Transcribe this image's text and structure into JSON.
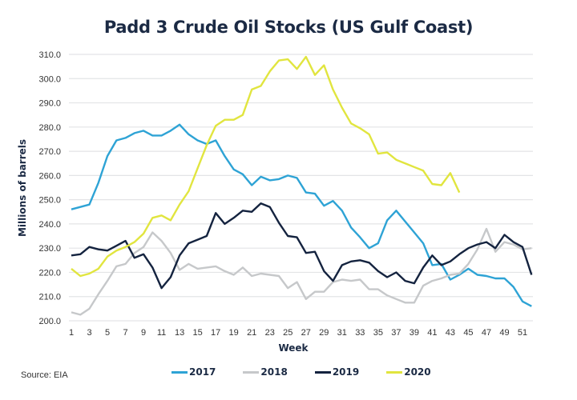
{
  "chart_data": {
    "type": "line",
    "title": "Padd 3 Crude Oil Stocks (US Gulf Coast)",
    "xlabel": "Week",
    "ylabel": "Millions of barrels",
    "source": "Source: EIA",
    "ylim": [
      200,
      310
    ],
    "xlim": [
      1,
      52
    ],
    "grid": true,
    "legend_position": "bottom-center",
    "y_ticks": [
      "200.0",
      "210.0",
      "220.0",
      "230.0",
      "240.0",
      "250.0",
      "260.0",
      "270.0",
      "280.0",
      "290.0",
      "300.0",
      "310.0"
    ],
    "x_ticks": [
      1,
      3,
      5,
      7,
      9,
      11,
      13,
      15,
      17,
      19,
      21,
      23,
      25,
      27,
      29,
      31,
      33,
      35,
      37,
      39,
      41,
      43,
      45,
      47,
      49,
      51
    ],
    "series": [
      {
        "name": "2017",
        "color": "#2ea3d5",
        "values": [
          246,
          247,
          248,
          257,
          268,
          274.5,
          275.5,
          277.5,
          278.5,
          276.5,
          276.5,
          278.5,
          281,
          277,
          274.5,
          273,
          274.5,
          268,
          262.5,
          260.5,
          256,
          259.5,
          258,
          258.5,
          260,
          259,
          253,
          252.5,
          247.5,
          249.5,
          245.5,
          238.5,
          234.5,
          230,
          232,
          241.5,
          245.5,
          241,
          236.5,
          232,
          223,
          223.5,
          217,
          219,
          221.5,
          219,
          218.5,
          217.5,
          217.5,
          214,
          208,
          206
        ]
      },
      {
        "name": "2018",
        "color": "#c6c8ca",
        "values": [
          203.5,
          202.5,
          205,
          211,
          216.5,
          222.5,
          223.5,
          228,
          230.5,
          236.5,
          233,
          228,
          221,
          223.5,
          221.5,
          222,
          222.5,
          220.5,
          219,
          222,
          218.5,
          219.5,
          219,
          218.5,
          213.5,
          216,
          209,
          212,
          212,
          216,
          217,
          216.5,
          217,
          213,
          213,
          210.5,
          209,
          207.5,
          207.5,
          214.5,
          216.5,
          217.5,
          219,
          219.5,
          223.5,
          229.5,
          238,
          228.5,
          232.5,
          231.5,
          229.5,
          230
        ]
      },
      {
        "name": "2019",
        "color": "#14233f",
        "values": [
          227,
          227.5,
          230.5,
          229.5,
          229,
          231,
          233,
          226,
          227.5,
          222,
          213.5,
          218,
          227,
          232,
          233.5,
          235,
          244.5,
          240,
          242.5,
          245.5,
          245,
          248.5,
          247,
          240.5,
          235,
          234.5,
          228,
          228.5,
          220.5,
          216.5,
          223,
          224.5,
          225,
          224,
          220.5,
          218,
          220,
          216.5,
          215.5,
          222,
          227,
          223,
          224.5,
          227.5,
          230,
          231.5,
          232.5,
          230,
          235.5,
          232.5,
          230.5,
          219
        ]
      },
      {
        "name": "2020",
        "color": "#e1e53f",
        "values": [
          221.5,
          218.5,
          219.5,
          221.5,
          226.5,
          229,
          230.5,
          232.5,
          236,
          242.5,
          243.5,
          241.5,
          248,
          253.5,
          263,
          272.5,
          280.5,
          283,
          283,
          285,
          295.5,
          297,
          303,
          307.5,
          308,
          304,
          309,
          301.5,
          305.5,
          295.5,
          288,
          281.5,
          279.5,
          277,
          269,
          269.5,
          266.5,
          265,
          263.5,
          262,
          256.5,
          256,
          261,
          253
        ]
      }
    ]
  }
}
